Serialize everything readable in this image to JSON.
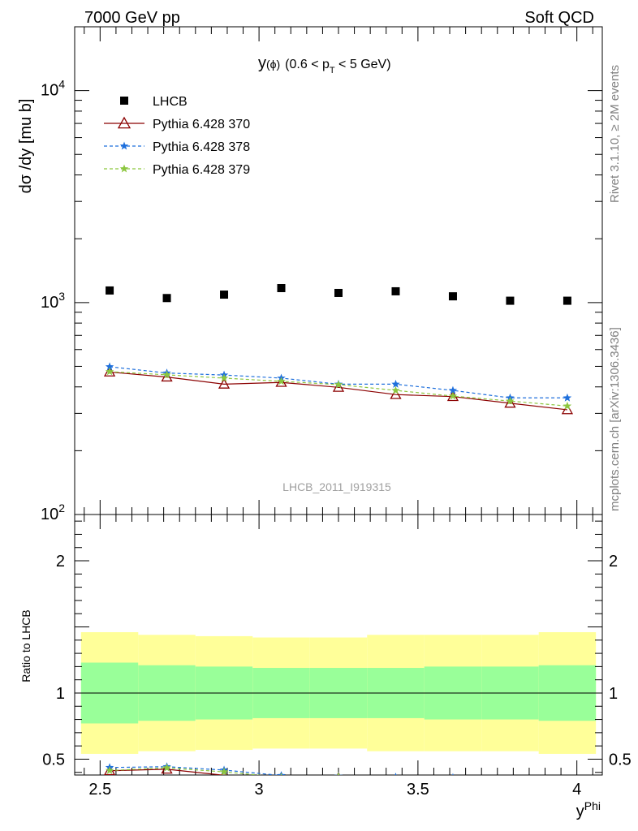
{
  "header": {
    "left": "7000 GeV pp",
    "right": "Soft QCD"
  },
  "side_labels": {
    "rivet": "Rivet 3.1.10, ≥ 2M events",
    "mcplots": "mcplots.cern.ch [arXiv:1306.3436]"
  },
  "watermark": "LHCB_2011_I919315",
  "chart_data": {
    "type": "scatter",
    "title": "y(ϕ) (0.6 < pT < 5 GeV)",
    "title_parts": {
      "main": "y",
      "paren": "(ϕ)",
      "range_pre": "(0.6 < p",
      "range_sub": "T",
      "range_post": " < 5 GeV)"
    },
    "xlabel": "y",
    "xlabel_sup": "Phi",
    "ylabel": "dσ /dy [mu b]",
    "ratio_ylabel": "Ratio to LHCB",
    "xlim": [
      2.42,
      4.08
    ],
    "ylim": [
      100,
      20000
    ],
    "yscale": "log",
    "ratio_ylim": [
      0.38,
      2.35
    ],
    "x_ticks": [
      "2.5",
      "3",
      "3.5",
      "4"
    ],
    "x_tick_values": [
      2.5,
      3.0,
      3.5,
      4.0
    ],
    "y_ticks_main": [
      {
        "base": "10",
        "exp": "2",
        "value": 100
      },
      {
        "base": "10",
        "exp": "3",
        "value": 1000
      },
      {
        "base": "10",
        "exp": "4",
        "value": 10000
      }
    ],
    "y_ticks_ratio": [
      "0.5",
      "1",
      "2"
    ],
    "y_tick_values_ratio": [
      0.5,
      1,
      2
    ],
    "legend_position": "top-left",
    "x": [
      2.53,
      2.71,
      2.89,
      3.07,
      3.25,
      3.43,
      3.61,
      3.79,
      3.97
    ],
    "bins": [
      [
        2.44,
        2.62
      ],
      [
        2.62,
        2.8
      ],
      [
        2.8,
        2.98
      ],
      [
        2.98,
        3.16
      ],
      [
        3.16,
        3.34
      ],
      [
        3.34,
        3.52
      ],
      [
        3.52,
        3.7
      ],
      [
        3.7,
        3.88
      ],
      [
        3.88,
        4.06
      ]
    ],
    "band_inner": [
      0.23,
      0.21,
      0.2,
      0.19,
      0.19,
      0.19,
      0.2,
      0.2,
      0.21
    ],
    "band_outer": [
      0.46,
      0.44,
      0.43,
      0.42,
      0.42,
      0.44,
      0.44,
      0.44,
      0.46
    ],
    "series": [
      {
        "name": "LHCB",
        "color": "#000000",
        "marker": "square",
        "line": "none",
        "values": [
          1140,
          1050,
          1090,
          1170,
          1110,
          1130,
          1070,
          1020,
          1020
        ]
      },
      {
        "name": "Pythia 6.428 370",
        "color": "#8b0000",
        "marker": "triangle",
        "line": "solid",
        "values": [
          470,
          445,
          412,
          420,
          398,
          368,
          360,
          335,
          312
        ]
      },
      {
        "name": "Pythia 6.428 378",
        "color": "#1e6fdc",
        "marker": "star",
        "line": "dashed",
        "values": [
          498,
          465,
          455,
          440,
          412,
          412,
          385,
          355,
          355
        ]
      },
      {
        "name": "Pythia 6.428 379",
        "color": "#8cc63f",
        "marker": "star",
        "line": "dashed",
        "values": [
          472,
          456,
          440,
          425,
          410,
          385,
          362,
          343,
          325
        ]
      }
    ]
  }
}
